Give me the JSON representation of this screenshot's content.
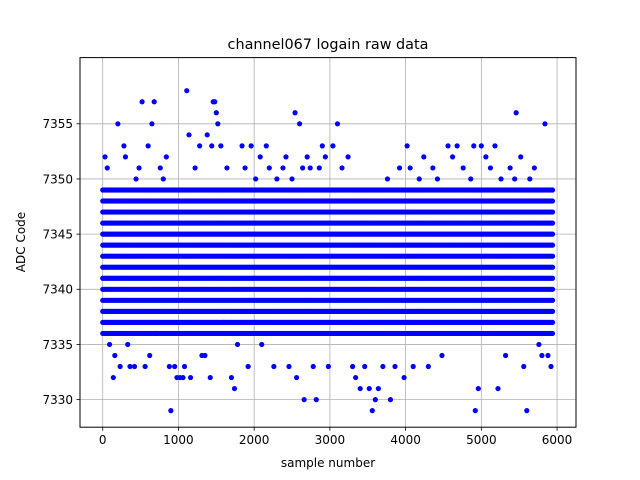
{
  "chart_data": {
    "type": "scatter",
    "title": "channel067 logain raw data",
    "xlabel": "sample number",
    "ylabel": "ADC Code",
    "xlim": [
      -300,
      6250
    ],
    "ylim": [
      7327.5,
      7361
    ],
    "xticks": [
      0,
      1000,
      2000,
      3000,
      4000,
      5000,
      6000
    ],
    "yticks": [
      7330,
      7335,
      7340,
      7345,
      7350,
      7355
    ],
    "grid": true,
    "marker_color": "#0000ff",
    "sample_count": 6000,
    "dense_band": {
      "levels": [
        7336,
        7337,
        7338,
        7339,
        7340,
        7341,
        7342,
        7343,
        7344,
        7345,
        7346,
        7347,
        7348,
        7349
      ],
      "x_start": 0,
      "x_end": 5940,
      "x_step": 20
    },
    "sparse_points": [
      [
        30,
        7352
      ],
      [
        60,
        7351
      ],
      [
        90,
        7335
      ],
      [
        140,
        7332
      ],
      [
        160,
        7334
      ],
      [
        200,
        7355
      ],
      [
        230,
        7333
      ],
      [
        280,
        7353
      ],
      [
        300,
        7352
      ],
      [
        330,
        7335
      ],
      [
        360,
        7333
      ],
      [
        420,
        7333
      ],
      [
        440,
        7350
      ],
      [
        480,
        7351
      ],
      [
        520,
        7357
      ],
      [
        560,
        7333
      ],
      [
        600,
        7353
      ],
      [
        620,
        7334
      ],
      [
        650,
        7355
      ],
      [
        680,
        7357
      ],
      [
        700,
        7336
      ],
      [
        760,
        7351
      ],
      [
        800,
        7350
      ],
      [
        840,
        7352
      ],
      [
        880,
        7333
      ],
      [
        900,
        7329
      ],
      [
        950,
        7333
      ],
      [
        980,
        7332
      ],
      [
        1020,
        7332
      ],
      [
        1060,
        7332
      ],
      [
        1080,
        7333
      ],
      [
        1110,
        7358
      ],
      [
        1140,
        7354
      ],
      [
        1160,
        7332
      ],
      [
        1220,
        7351
      ],
      [
        1280,
        7353
      ],
      [
        1310,
        7334
      ],
      [
        1350,
        7334
      ],
      [
        1380,
        7354
      ],
      [
        1420,
        7332
      ],
      [
        1440,
        7353
      ],
      [
        1460,
        7357
      ],
      [
        1480,
        7357
      ],
      [
        1500,
        7356
      ],
      [
        1520,
        7355
      ],
      [
        1560,
        7353
      ],
      [
        1600,
        7337
      ],
      [
        1640,
        7351
      ],
      [
        1700,
        7332
      ],
      [
        1740,
        7331
      ],
      [
        1780,
        7335
      ],
      [
        1840,
        7353
      ],
      [
        1880,
        7351
      ],
      [
        1920,
        7333
      ],
      [
        1960,
        7353
      ],
      [
        2020,
        7350
      ],
      [
        2080,
        7352
      ],
      [
        2100,
        7335
      ],
      [
        2160,
        7353
      ],
      [
        2200,
        7351
      ],
      [
        2260,
        7333
      ],
      [
        2300,
        7350
      ],
      [
        2380,
        7351
      ],
      [
        2420,
        7352
      ],
      [
        2460,
        7333
      ],
      [
        2500,
        7350
      ],
      [
        2540,
        7356
      ],
      [
        2560,
        7332
      ],
      [
        2600,
        7355
      ],
      [
        2640,
        7351
      ],
      [
        2660,
        7330
      ],
      [
        2700,
        7352
      ],
      [
        2740,
        7351
      ],
      [
        2780,
        7333
      ],
      [
        2820,
        7330
      ],
      [
        2860,
        7351
      ],
      [
        2900,
        7353
      ],
      [
        2940,
        7352
      ],
      [
        2980,
        7333
      ],
      [
        3040,
        7353
      ],
      [
        3100,
        7355
      ],
      [
        3160,
        7351
      ],
      [
        3240,
        7352
      ],
      [
        3300,
        7333
      ],
      [
        3340,
        7332
      ],
      [
        3400,
        7331
      ],
      [
        3460,
        7333
      ],
      [
        3520,
        7331
      ],
      [
        3560,
        7329
      ],
      [
        3600,
        7330
      ],
      [
        3640,
        7331
      ],
      [
        3700,
        7333
      ],
      [
        3760,
        7350
      ],
      [
        3800,
        7330
      ],
      [
        3860,
        7333
      ],
      [
        3920,
        7351
      ],
      [
        3980,
        7332
      ],
      [
        4020,
        7353
      ],
      [
        4060,
        7351
      ],
      [
        4100,
        7333
      ],
      [
        4180,
        7350
      ],
      [
        4240,
        7352
      ],
      [
        4300,
        7333
      ],
      [
        4360,
        7351
      ],
      [
        4420,
        7350
      ],
      [
        4480,
        7334
      ],
      [
        4560,
        7353
      ],
      [
        4620,
        7352
      ],
      [
        4680,
        7353
      ],
      [
        4760,
        7351
      ],
      [
        4860,
        7350
      ],
      [
        4900,
        7353
      ],
      [
        4920,
        7329
      ],
      [
        4960,
        7331
      ],
      [
        5000,
        7353
      ],
      [
        5060,
        7352
      ],
      [
        5120,
        7351
      ],
      [
        5180,
        7353
      ],
      [
        5220,
        7331
      ],
      [
        5260,
        7350
      ],
      [
        5320,
        7334
      ],
      [
        5380,
        7351
      ],
      [
        5440,
        7350
      ],
      [
        5460,
        7356
      ],
      [
        5520,
        7352
      ],
      [
        5560,
        7333
      ],
      [
        5600,
        7329
      ],
      [
        5640,
        7350
      ],
      [
        5700,
        7351
      ],
      [
        5760,
        7335
      ],
      [
        5800,
        7334
      ],
      [
        5840,
        7355
      ],
      [
        5880,
        7334
      ],
      [
        5920,
        7333
      ]
    ]
  }
}
